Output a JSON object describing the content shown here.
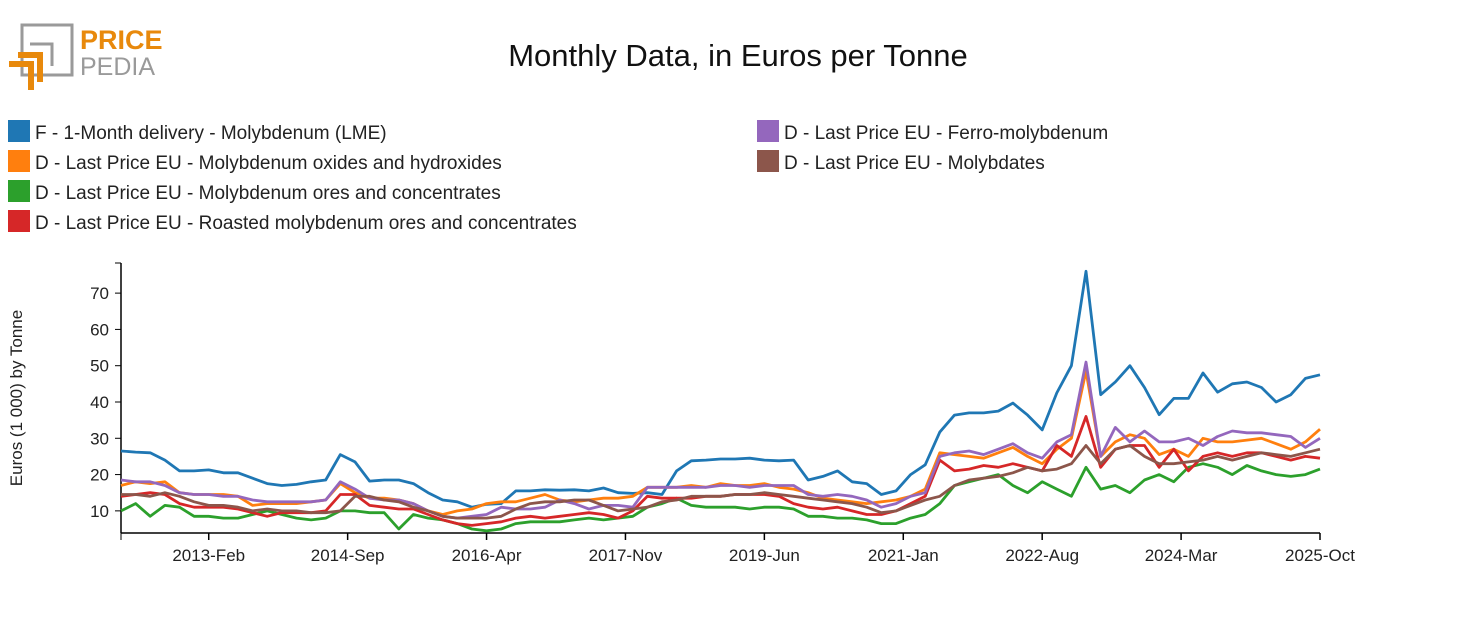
{
  "logo": {
    "line1": "PRICE",
    "line2": "PEDIA",
    "accent": "#e8890c",
    "gray": "#9a9a9a"
  },
  "chart_data": {
    "type": "line",
    "title": "Monthly Data, in Euros per Tonne",
    "xlabel": "",
    "ylabel": "Euros (1 000) by Tonne",
    "x_start": "2012-Feb",
    "x_end": "2025-Oct",
    "x_step_months": 2,
    "xticks": [
      "2013-Feb",
      "2014-Sep",
      "2016-Apr",
      "2017-Nov",
      "2019-Jun",
      "2021-Jan",
      "2022-Aug",
      "2024-Mar",
      "2025-Oct"
    ],
    "yticks": [
      10,
      20,
      30,
      40,
      50,
      60,
      70
    ],
    "ylim": [
      3.9,
      78.3
    ],
    "grid": false,
    "legend_placement": "top",
    "series": [
      {
        "name": "F - 1-Month delivery - Molybdenum (LME)",
        "color": "#1f77b4",
        "values": [
          26.5,
          26.2,
          26,
          24,
          21,
          21,
          21.3,
          20.5,
          20.5,
          19,
          17.5,
          17,
          17.3,
          18,
          18.5,
          25.5,
          23.5,
          18.2,
          18.5,
          18.5,
          17.5,
          15,
          13,
          12.5,
          11,
          11.8,
          12,
          15.5,
          15.5,
          15.8,
          15.7,
          15.8,
          15.5,
          16.3,
          15,
          14.8,
          15,
          14.5,
          21,
          23.8,
          24,
          24.3,
          24.3,
          24.5,
          24,
          23.8,
          24,
          18.5,
          19.5,
          21,
          18,
          17.5,
          14.5,
          15.5,
          20,
          22.7,
          31.7,
          36.4,
          37,
          37,
          37.5,
          39.7,
          36.4,
          32.3,
          42.5,
          50,
          76,
          42,
          45.5,
          50,
          44,
          36.5,
          41,
          41,
          48,
          42.7,
          45,
          45.5,
          44,
          40,
          42,
          46.5,
          47.5
        ]
      },
      {
        "name": "D - Last Price EU - Molybdenum oxides and hydroxides",
        "color": "#ff7f0e",
        "values": [
          17,
          18,
          17.5,
          18,
          15,
          14.5,
          14.5,
          14.5,
          14,
          11.5,
          12,
          12,
          12,
          12.5,
          13,
          17.5,
          15,
          13.5,
          13.5,
          13,
          12,
          10,
          9,
          10,
          10.5,
          12,
          12.5,
          12.5,
          13.5,
          14.5,
          13,
          12.5,
          13,
          13.5,
          13.5,
          14,
          16.5,
          16.5,
          16.5,
          17,
          16.5,
          17.5,
          17,
          17,
          17.5,
          16.5,
          16,
          15,
          13.5,
          13,
          12.5,
          12,
          12.5,
          13,
          14,
          16,
          26,
          25.5,
          25,
          24.5,
          26,
          27.5,
          25,
          23,
          27,
          30,
          48.5,
          25,
          29,
          31,
          30,
          25.5,
          27,
          25,
          30,
          29,
          29,
          29.5,
          30,
          28.5,
          27,
          29,
          32.5
        ]
      },
      {
        "name": "D - Last Price EU - Molybdenum ores and concentrates",
        "color": "#2ca02c",
        "values": [
          10,
          12,
          8.5,
          11.5,
          11,
          8.5,
          8.5,
          8,
          8,
          9,
          10,
          9,
          8,
          7.5,
          8,
          10,
          10,
          9.5,
          9.5,
          5,
          9,
          8,
          7.5,
          6.5,
          5,
          4.5,
          5,
          6.5,
          7,
          7,
          7,
          7.5,
          8,
          7.5,
          8,
          8.5,
          11,
          12,
          13.5,
          11.5,
          11,
          11,
          11,
          10.5,
          11,
          11,
          10.5,
          8.5,
          8.5,
          8,
          8,
          7.5,
          6.5,
          6.5,
          8,
          9,
          12,
          17,
          18,
          19,
          20,
          17,
          15,
          18,
          16,
          14,
          22,
          16,
          17,
          15,
          18.5,
          20,
          18,
          22,
          23,
          22,
          20,
          22.5,
          21,
          20,
          19.5,
          20,
          21.5
        ]
      },
      {
        "name": "D - Last Price EU - Roasted molybdenum ores and concentrates",
        "color": "#d62728",
        "values": [
          14,
          14.5,
          15,
          14.5,
          12,
          11,
          11,
          11,
          10.5,
          9.5,
          8.5,
          9.5,
          9.5,
          9.5,
          10,
          14.5,
          14.5,
          11.5,
          11,
          10.5,
          10.5,
          9,
          7.5,
          6.5,
          6,
          6.5,
          7,
          8,
          8.5,
          8,
          8.5,
          9,
          9.5,
          9,
          8,
          10,
          14,
          13.5,
          13.5,
          13.5,
          14,
          14,
          14.5,
          14.5,
          14.5,
          14,
          12,
          11,
          10.5,
          11,
          10,
          9,
          9,
          10,
          12,
          14,
          24,
          21,
          21.5,
          22.5,
          22,
          23,
          22,
          21,
          28,
          25,
          36,
          22,
          27,
          28,
          28,
          22,
          27,
          21,
          25,
          26,
          25,
          26,
          26,
          25,
          24,
          25,
          24.5
        ]
      },
      {
        "name": "D - Last Price EU - Ferro-molybdenum",
        "color": "#9467bd",
        "values": [
          18.5,
          18,
          18,
          17,
          15,
          14.5,
          14.5,
          14,
          14,
          13,
          12.5,
          12.5,
          12.5,
          12.5,
          13,
          18,
          16,
          13.5,
          13,
          13,
          12,
          10,
          8.5,
          8,
          8.5,
          9,
          11,
          10.5,
          10.5,
          11,
          13,
          12,
          10.5,
          11.5,
          11.5,
          11,
          16.5,
          16.5,
          16.5,
          16.5,
          16.5,
          17,
          17,
          16.5,
          17,
          17,
          17,
          14.5,
          14,
          14.5,
          14,
          13,
          11,
          12,
          14,
          15,
          25,
          26,
          26.5,
          25.5,
          27,
          28.5,
          26,
          24.5,
          29,
          31,
          51,
          25,
          33,
          29,
          32,
          29,
          29,
          30,
          28,
          30.5,
          32,
          31.5,
          31.5,
          31,
          30.5,
          27.5,
          30
        ]
      },
      {
        "name": "D - Last Price EU - Molybdates",
        "color": "#8c564b",
        "values": [
          14.5,
          14.5,
          14,
          15,
          14,
          12.5,
          11.5,
          11.5,
          11,
          10,
          10.5,
          10,
          10,
          9.5,
          9.5,
          10,
          14,
          14,
          13,
          12.5,
          11,
          10,
          8.5,
          8,
          8,
          8,
          8.5,
          10.5,
          12,
          12.5,
          12.5,
          13,
          13,
          11.5,
          10,
          10.5,
          11,
          12.5,
          13,
          14,
          14,
          14,
          14.5,
          14.5,
          15,
          14.5,
          14,
          13.5,
          13,
          12.5,
          12,
          11,
          9.5,
          10,
          11.5,
          13,
          14,
          17,
          18.5,
          19,
          19.5,
          20.5,
          22,
          21,
          21.5,
          23,
          28,
          23,
          27,
          28,
          25,
          23,
          23,
          23.5,
          24,
          25,
          24,
          25,
          26,
          25.5,
          25,
          26,
          27
        ]
      }
    ]
  }
}
